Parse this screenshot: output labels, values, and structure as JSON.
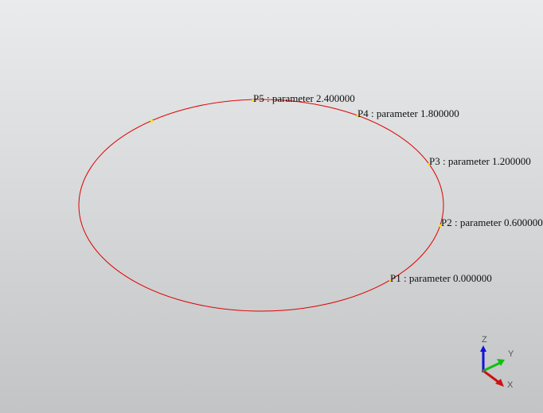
{
  "viewer": {
    "background_top": "#e9ebec",
    "background_bottom": "#c2c4c5",
    "curve_color": "#e00000",
    "point_color": "#f2e600"
  },
  "points": [
    {
      "name": "P1",
      "label": "P1 : parameter 0.000000"
    },
    {
      "name": "P2",
      "label": "P2 : parameter 0.600000"
    },
    {
      "name": "P3",
      "label": "P3 : parameter 1.200000"
    },
    {
      "name": "P4",
      "label": "P4 : parameter 1.800000"
    },
    {
      "name": "P5",
      "label": "P5 : parameter 2.400000"
    }
  ],
  "axis_triad": {
    "z_label": "Z",
    "y_label": "Y",
    "x_label": "X",
    "z_color": "#1010e0",
    "y_color": "#10c010",
    "x_color": "#d01010"
  }
}
